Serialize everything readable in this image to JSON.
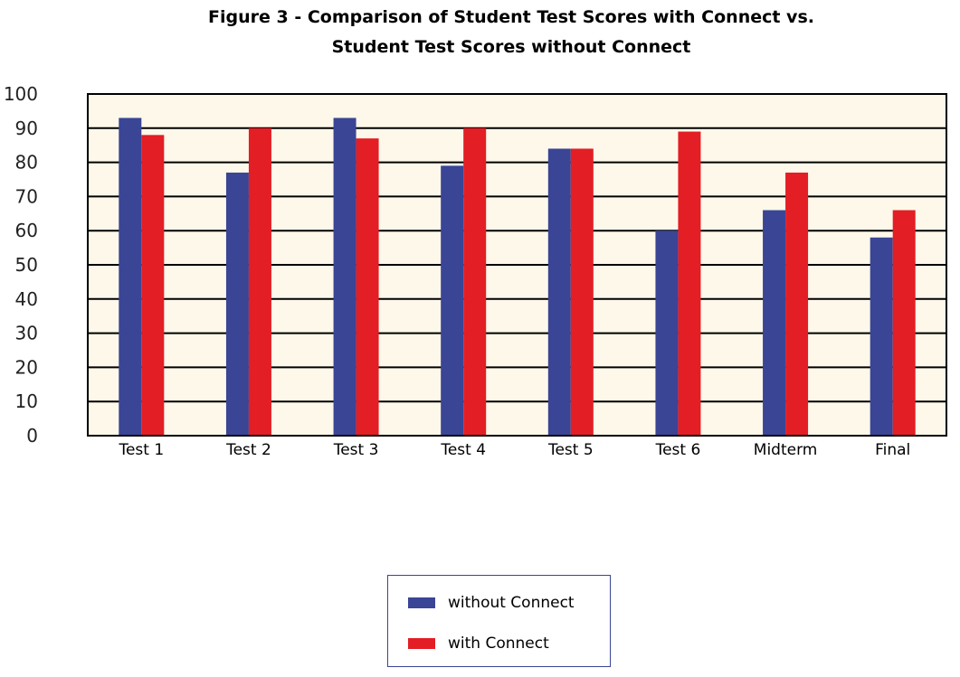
{
  "title_line1": "Figure 3 - Comparison of Student Test Scores with Connect vs.",
  "title_line2": "Student Test Scores without Connect",
  "colors": {
    "plot_background": "#fdf8ea",
    "without_connect": "#3a4595",
    "with_connect": "#e31e24",
    "gridline": "#000000"
  },
  "chart_data": {
    "type": "bar",
    "categories": [
      "Test 1",
      "Test 2",
      "Test 3",
      "Test 4",
      "Test 5",
      "Test 6",
      "Midterm",
      "Final"
    ],
    "series": [
      {
        "name": "without Connect",
        "values": [
          93,
          77,
          93,
          79,
          84,
          60,
          66,
          58
        ]
      },
      {
        "name": "with Connect",
        "values": [
          88,
          90,
          87,
          90,
          84,
          89,
          77,
          66
        ]
      }
    ],
    "yticks": [
      0,
      10,
      20,
      30,
      40,
      50,
      60,
      70,
      80,
      90,
      100
    ],
    "ylim": [
      0,
      100
    ],
    "grid": true,
    "legend_position": "bottom-center"
  },
  "legend": {
    "without_label": "without Connect",
    "with_label": "with Connect"
  }
}
